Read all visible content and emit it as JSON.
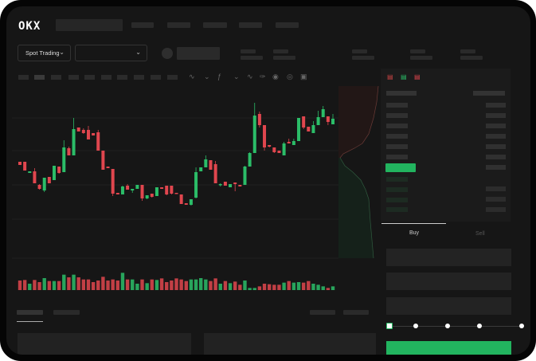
{
  "brand": {
    "logo": "OKX"
  },
  "market_bar": {
    "mode_selector": "Spot Trading"
  },
  "trade_panel": {
    "tabs": [
      {
        "label": "Buy",
        "active": true
      },
      {
        "label": "Sell",
        "active": false
      }
    ],
    "slider_level": 0,
    "accent": "#22b45f"
  },
  "colors": {
    "up": "#2bbd68",
    "down": "#e0464e",
    "background": "#161616"
  },
  "icons": [
    "logo",
    "chevron-down-icon",
    "indicator-icon",
    "line-tool-icon",
    "pen-icon",
    "magnet-icon",
    "target-icon",
    "expand-icon",
    "orderbook-both-icon",
    "orderbook-bids-icon",
    "orderbook-asks-icon"
  ],
  "chart_data": {
    "type": "candlestick",
    "title": "",
    "xlabel": "",
    "ylabel": "",
    "grid": true,
    "candles": [
      [
        67,
        63,
        67,
        63
      ],
      [
        67,
        56,
        67,
        56
      ],
      [
        53,
        55,
        55,
        53
      ],
      [
        55,
        40,
        59,
        40
      ],
      [
        38,
        33,
        39,
        32
      ],
      [
        31,
        47,
        47,
        29
      ],
      [
        48,
        40,
        48,
        40
      ],
      [
        44,
        62,
        62,
        44
      ],
      [
        61,
        53,
        61,
        52
      ],
      [
        54,
        85,
        94,
        54
      ],
      [
        84,
        75,
        86,
        75
      ],
      [
        75,
        108,
        122,
        75
      ],
      [
        110,
        105,
        110,
        105
      ],
      [
        107,
        103,
        109,
        102
      ],
      [
        107,
        95,
        112,
        95
      ],
      [
        103,
        100,
        103,
        100
      ],
      [
        104,
        81,
        107,
        81
      ],
      [
        81,
        57,
        81,
        57
      ],
      [
        61,
        59,
        61,
        59
      ],
      [
        58,
        27,
        58,
        24
      ],
      [
        28,
        26,
        28,
        26
      ],
      [
        26,
        36,
        37,
        26
      ],
      [
        37,
        32,
        39,
        32
      ],
      [
        31,
        33,
        33,
        28
      ],
      [
        33,
        38,
        38,
        33
      ],
      [
        38,
        21,
        38,
        18
      ],
      [
        21,
        25,
        25,
        20
      ],
      [
        27,
        23,
        27,
        22
      ],
      [
        24,
        35,
        35,
        24
      ],
      [
        35,
        33,
        35,
        33
      ],
      [
        37,
        26,
        37,
        25
      ],
      [
        37,
        27,
        37,
        26
      ],
      [
        28,
        27,
        28,
        27
      ],
      [
        26,
        14,
        26,
        14
      ],
      [
        15,
        13,
        15,
        13
      ],
      [
        13,
        20,
        20,
        12
      ],
      [
        22,
        54,
        60,
        21
      ],
      [
        55,
        60,
        60,
        55
      ],
      [
        60,
        70,
        75,
        60
      ],
      [
        69,
        57,
        69,
        57
      ],
      [
        64,
        40,
        68,
        40
      ],
      [
        38,
        39,
        40,
        36
      ],
      [
        42,
        37,
        42,
        37
      ],
      [
        35,
        39,
        39,
        35
      ],
      [
        41,
        39,
        41,
        30
      ],
      [
        38,
        36,
        38,
        36
      ],
      [
        38,
        61,
        62,
        38
      ],
      [
        61,
        78,
        79,
        61
      ],
      [
        78,
        125,
        141,
        78
      ],
      [
        127,
        113,
        130,
        110
      ],
      [
        113,
        85,
        113,
        81
      ],
      [
        88,
        86,
        88,
        85
      ],
      [
        85,
        79,
        85,
        78
      ],
      [
        81,
        78,
        81,
        78
      ],
      [
        75,
        90,
        92,
        75
      ],
      [
        92,
        90,
        96,
        90
      ],
      [
        88,
        93,
        96,
        88
      ],
      [
        93,
        122,
        122,
        93
      ],
      [
        124,
        110,
        124,
        108
      ],
      [
        111,
        105,
        111,
        105
      ],
      [
        103,
        113,
        118,
        103
      ],
      [
        113,
        123,
        131,
        113
      ],
      [
        123,
        133,
        137,
        123
      ],
      [
        124,
        117,
        124,
        113
      ],
      [
        114,
        121,
        127,
        114
      ]
    ],
    "candle_fields": [
      "open",
      "close",
      "high",
      "low"
    ],
    "volume": [
      36,
      38,
      24,
      38,
      30,
      45,
      34,
      34,
      34,
      58,
      48,
      58,
      48,
      40,
      40,
      30,
      36,
      50,
      36,
      40,
      36,
      65,
      40,
      40,
      24,
      40,
      26,
      40,
      38,
      44,
      30,
      36,
      44,
      40,
      34,
      40,
      40,
      45,
      40,
      34,
      44,
      24,
      34,
      26,
      32,
      20,
      36,
      8,
      8,
      14,
      24,
      22,
      20,
      20,
      28,
      34,
      28,
      30,
      28,
      34,
      24,
      20,
      14,
      8,
      14
    ]
  }
}
